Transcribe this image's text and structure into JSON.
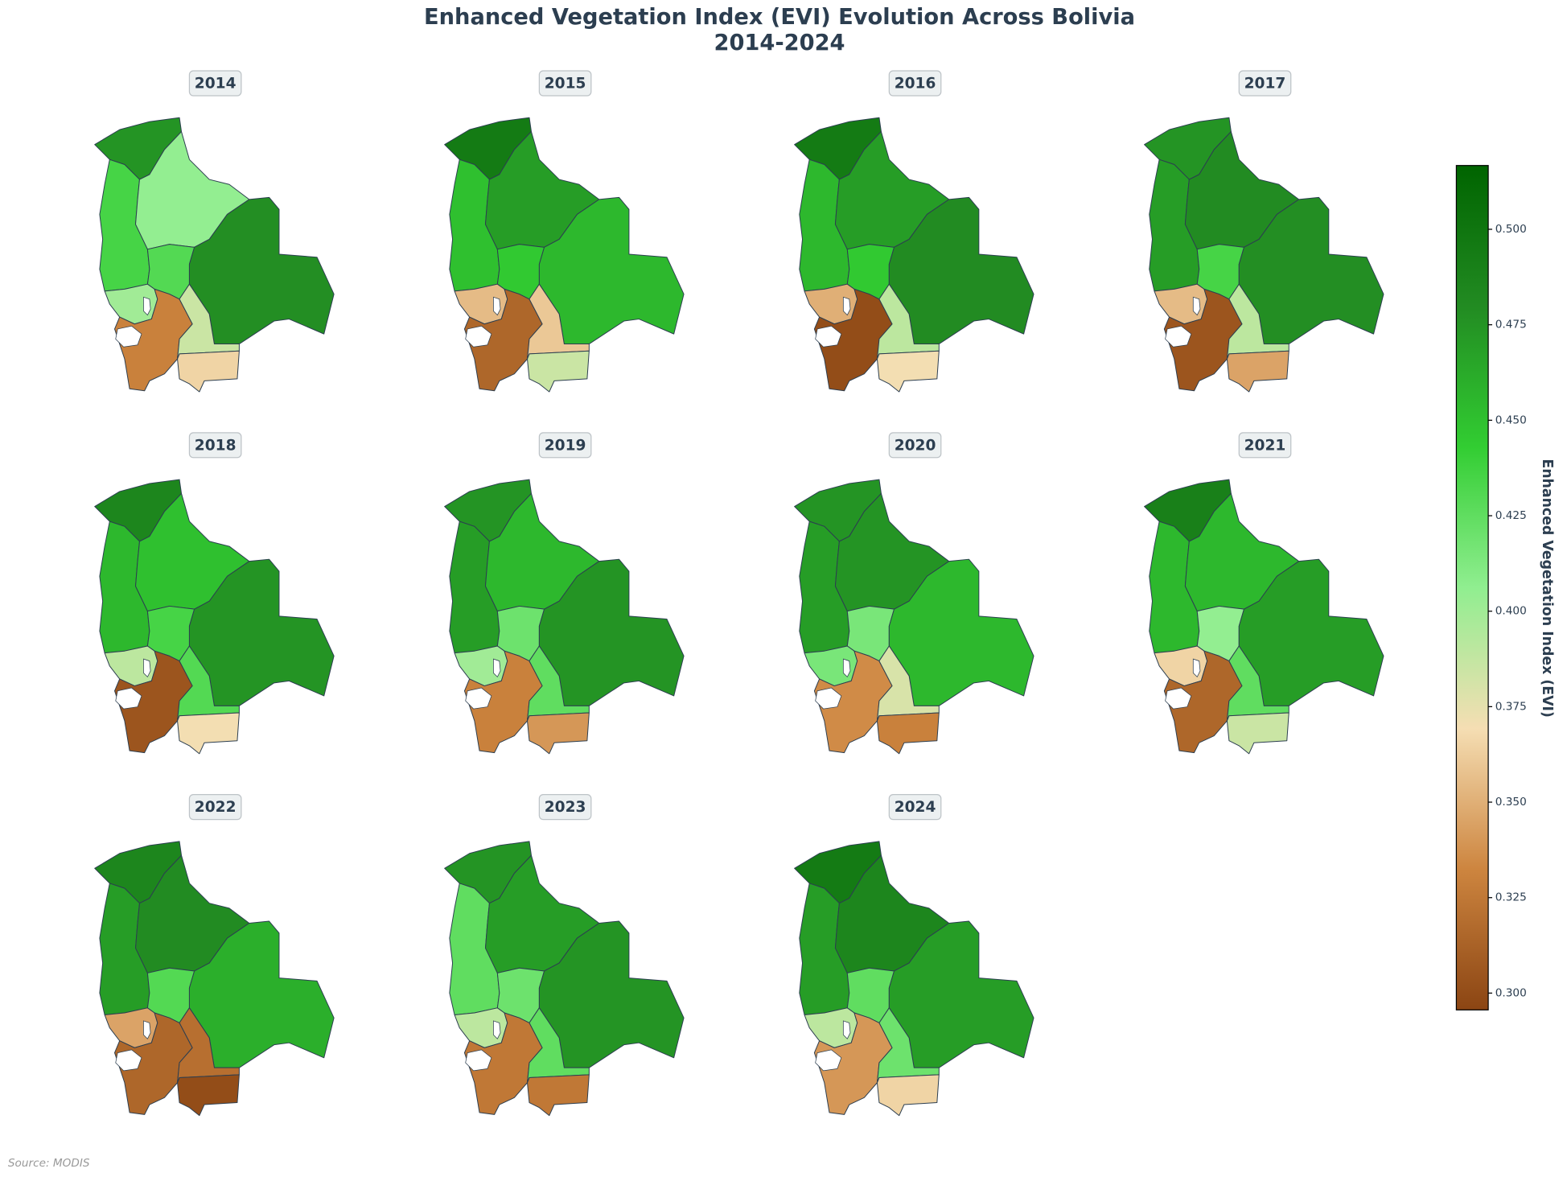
{
  "chart_data": {
    "type": "choropleth",
    "title": "Enhanced Vegetation Index (EVI) Evolution Across Bolivia",
    "subtitle": "2014-2024",
    "source": "Source: MODIS",
    "colorbar_label": "Enhanced Vegetation Index (EVI)",
    "colormap": [
      "#8B4513",
      "#CD853F",
      "#F5DEB3",
      "#90EE90",
      "#32CD32",
      "#228B22",
      "#006400"
    ],
    "vlim": [
      0.2956,
      0.5167
    ],
    "ticks": [
      {
        "value": 0.3,
        "label": "0.300"
      },
      {
        "value": 0.325,
        "label": "0.325"
      },
      {
        "value": 0.35,
        "label": "0.350"
      },
      {
        "value": 0.375,
        "label": "0.375"
      },
      {
        "value": 0.4,
        "label": "0.400"
      },
      {
        "value": 0.425,
        "label": "0.425"
      },
      {
        "value": 0.45,
        "label": "0.450"
      },
      {
        "value": 0.475,
        "label": "0.475"
      },
      {
        "value": 0.5,
        "label": "0.500"
      }
    ],
    "maps": [
      {
        "year": "2014",
        "values": [
          0.475,
          0.435,
          0.405,
          0.43,
          0.478,
          0.4,
          0.33,
          0.385,
          0.365
        ]
      },
      {
        "year": "2015",
        "values": [
          0.495,
          0.45,
          0.47,
          0.445,
          0.455,
          0.355,
          0.315,
          0.36,
          0.385
        ]
      },
      {
        "year": "2016",
        "values": [
          0.495,
          0.455,
          0.47,
          0.445,
          0.48,
          0.35,
          0.3,
          0.39,
          0.37
        ]
      },
      {
        "year": "2017",
        "values": [
          0.475,
          0.47,
          0.48,
          0.435,
          0.478,
          0.355,
          0.305,
          0.39,
          0.345
        ]
      },
      {
        "year": "2018",
        "values": [
          0.485,
          0.455,
          0.45,
          0.435,
          0.475,
          0.39,
          0.305,
          0.43,
          0.37
        ]
      },
      {
        "year": "2019",
        "values": [
          0.475,
          0.47,
          0.455,
          0.42,
          0.475,
          0.4,
          0.33,
          0.425,
          0.34
        ]
      },
      {
        "year": "2020",
        "values": [
          0.475,
          0.47,
          0.475,
          0.415,
          0.455,
          0.415,
          0.335,
          0.38,
          0.33
        ]
      },
      {
        "year": "2021",
        "values": [
          0.49,
          0.455,
          0.455,
          0.405,
          0.47,
          0.365,
          0.315,
          0.425,
          0.385
        ]
      },
      {
        "year": "2022",
        "values": [
          0.485,
          0.47,
          0.48,
          0.43,
          0.46,
          0.345,
          0.315,
          0.32,
          0.3
        ]
      },
      {
        "year": "2023",
        "values": [
          0.475,
          0.425,
          0.47,
          0.42,
          0.475,
          0.39,
          0.325,
          0.425,
          0.325
        ]
      },
      {
        "year": "2024",
        "values": [
          0.495,
          0.47,
          0.485,
          0.425,
          0.47,
          0.39,
          0.34,
          0.42,
          0.365
        ]
      }
    ]
  }
}
